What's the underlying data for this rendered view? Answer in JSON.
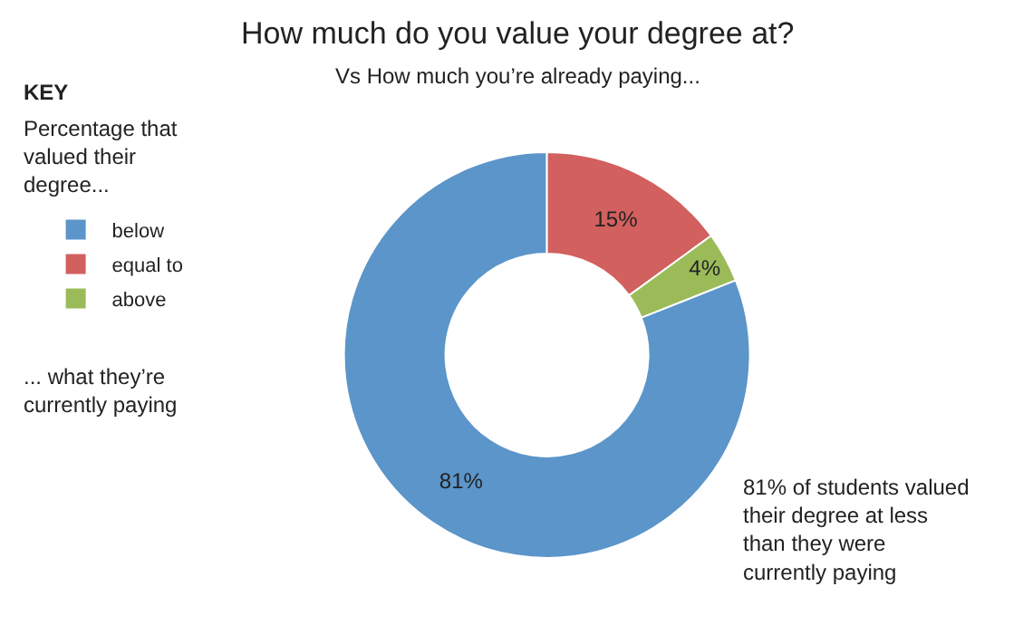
{
  "chart_data": {
    "type": "donut",
    "title": "How much do you value your degree at?",
    "subtitle": "Vs How much you’re already paying...",
    "legend_title": "KEY",
    "categories": [
      "below",
      "equal to",
      "above"
    ],
    "values": [
      81,
      15,
      4
    ],
    "value_labels": [
      "81%",
      "15%",
      "4%"
    ],
    "colors": [
      "#5b95c9",
      "#d1605e",
      "#9bbb59"
    ],
    "legend": "top left",
    "annotations": [
      "Percentage that valued their degree...",
      "... what they’re currently paying",
      "81% of students valued their degree at less than they were currently paying"
    ]
  }
}
